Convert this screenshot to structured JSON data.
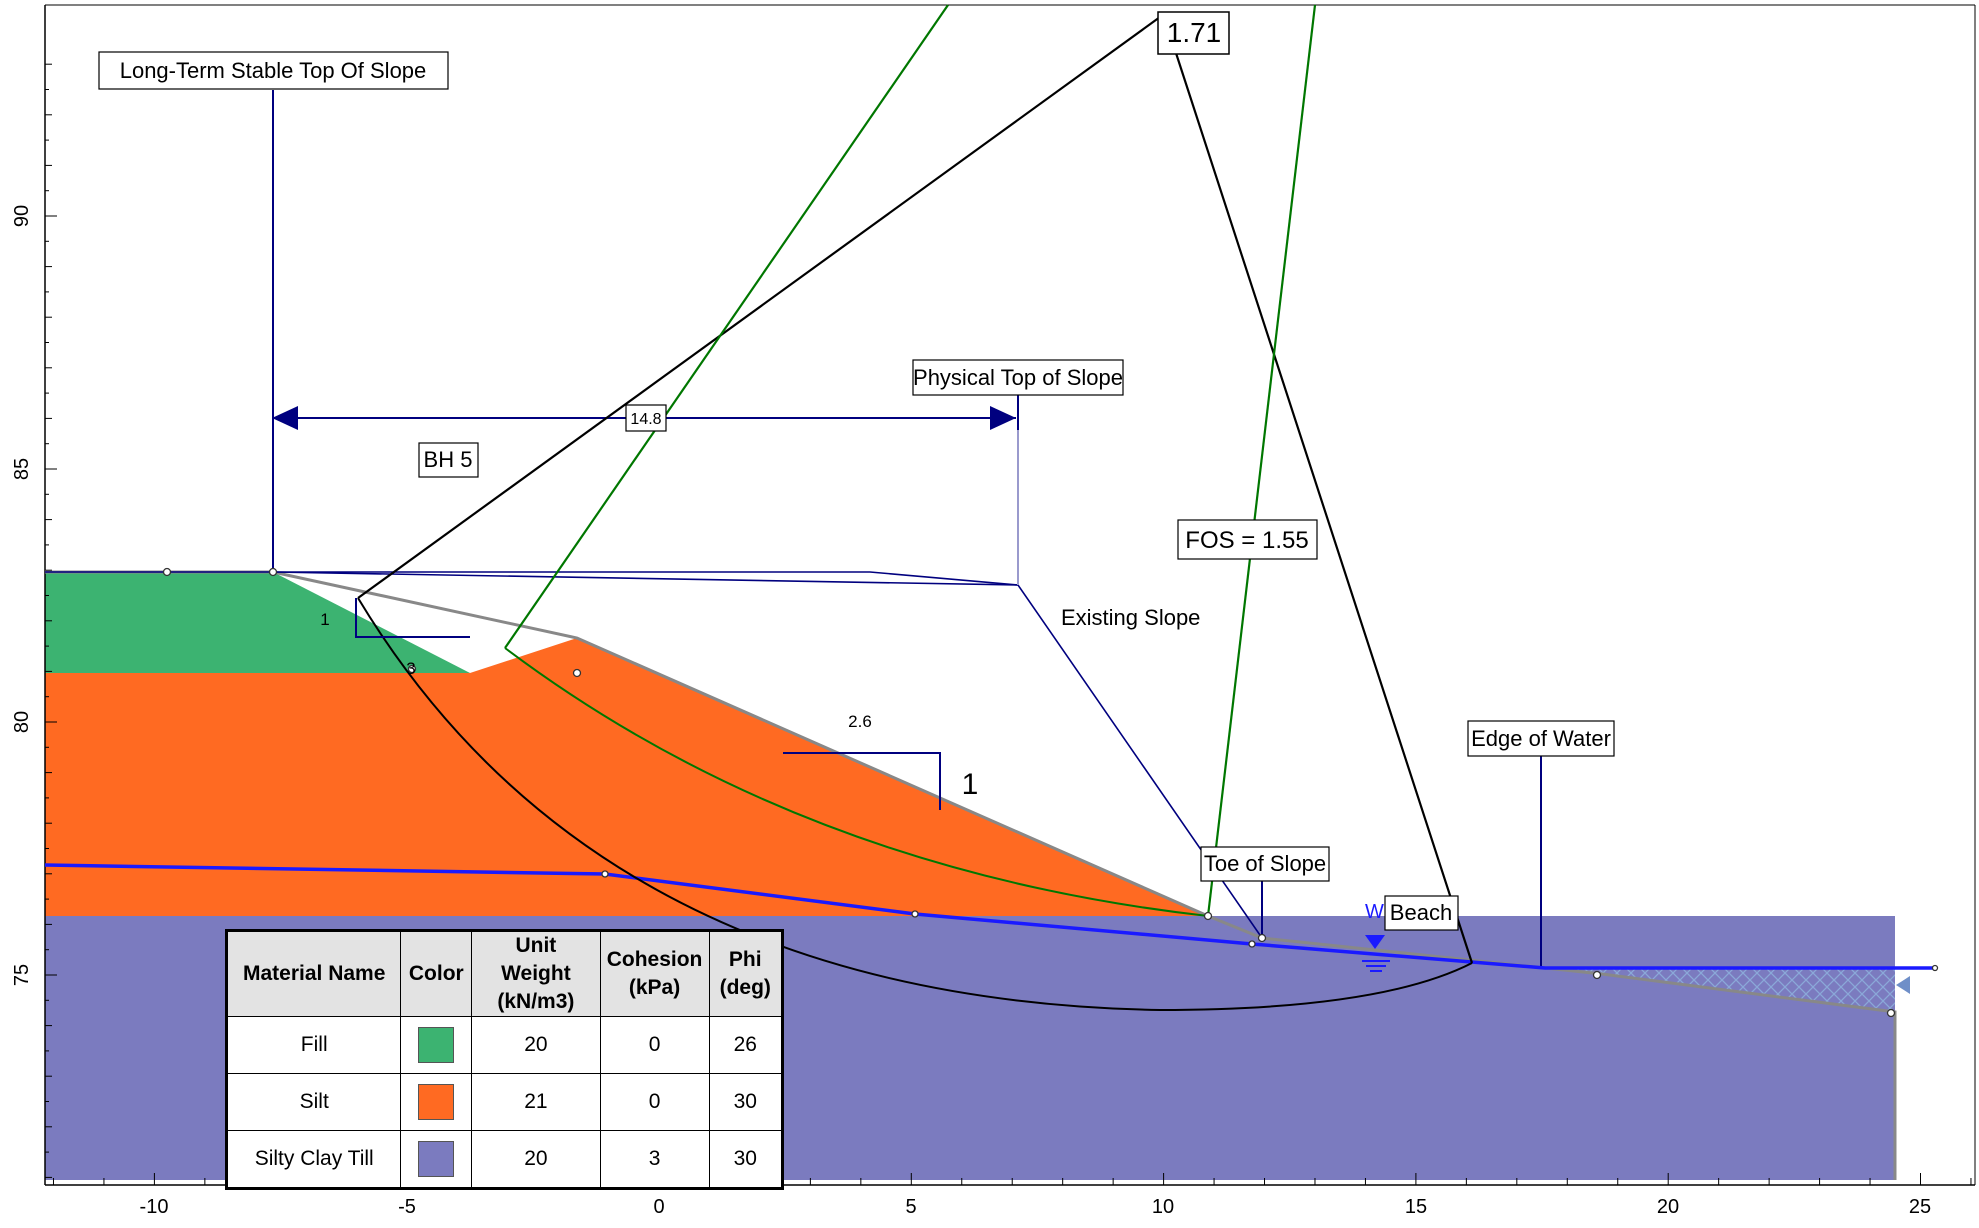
{
  "colors": {
    "fill": "#3cb371",
    "silt": "#ff6a22",
    "till": "#7b7bbf",
    "section_line": "#00007f",
    "water_table": "#1a1aff",
    "critical_circle": "#000000",
    "fos_circle": "#007700",
    "ground_surface": "#888888"
  },
  "diagram": {
    "x_ticks": [
      "-10",
      "-5",
      "0",
      "5",
      "10",
      "15",
      "20",
      "25"
    ],
    "y_ticks": [
      "75",
      "80",
      "85",
      "90"
    ],
    "labels": {
      "long_term_top": "Long-Term Stable Top Of Slope",
      "physical_top": "Physical Top of Slope",
      "distance": "14.8",
      "bh5": "BH 5",
      "existing_slope": "Existing Slope",
      "fos_critical": "1.71",
      "fos_value": "FOS = 1.55",
      "edge_of_water": "Edge of Water",
      "toe_of_slope": "Toe of Slope",
      "beach": "Beach",
      "water_symbol": "W",
      "slope1_vertical": "1",
      "slope1_horizontal": "3",
      "slope2_horizontal": "2.6",
      "slope2_vertical": "1"
    }
  },
  "legend": {
    "headers": [
      "Material Name",
      "Color",
      "Unit Weight (kN/m3)",
      "Cohesion (kPa)",
      "Phi (deg)"
    ],
    "rows": [
      {
        "name": "Fill",
        "color": "#3cb371",
        "unit_weight": "20",
        "cohesion": "0",
        "phi": "26"
      },
      {
        "name": "Silt",
        "color": "#ff6a22",
        "unit_weight": "21",
        "cohesion": "0",
        "phi": "30"
      },
      {
        "name": "Silty Clay Till",
        "color": "#7b7bbf",
        "unit_weight": "20",
        "cohesion": "3",
        "phi": "30"
      }
    ]
  }
}
